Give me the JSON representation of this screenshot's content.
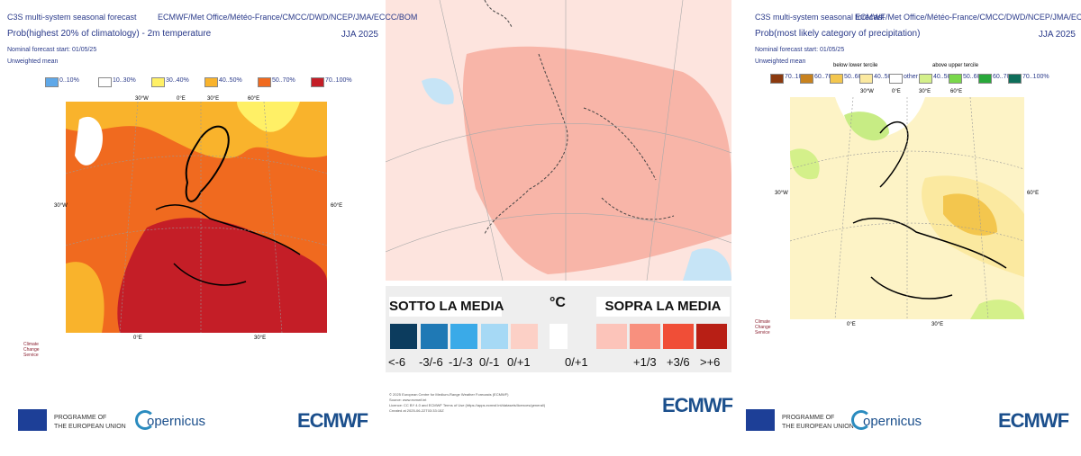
{
  "left": {
    "header": [
      "C3S multi-system seasonal forecast",
      "Prob(highest 20% of climatology) - 2m temperature",
      "Nominal forecast start: 01/05/25",
      "Unweighted mean"
    ],
    "providers": "ECMWF/Met Office/Météo-France/CMCC/DWD/NCEP/JMA/ECCC/BOM",
    "period": "JJA 2025",
    "legend": [
      {
        "label": "0..10%",
        "color": "#5fa8e8"
      },
      {
        "label": "10..30%",
        "color": "#ffffff"
      },
      {
        "label": "30..40%",
        "color": "#fff066"
      },
      {
        "label": "40..50%",
        "color": "#f9b32c"
      },
      {
        "label": "50..70%",
        "color": "#f06a1f"
      },
      {
        "label": "70..100%",
        "color": "#c41e27"
      }
    ],
    "map_labels": {
      "top": [
        "30°W",
        "0°E",
        "30°E",
        "60°E"
      ],
      "left": "30°W",
      "right": "60°E",
      "bottom": [
        "0°E",
        "30°E"
      ]
    },
    "service": "Climate Change Service",
    "footer": {
      "eu": [
        "PROGRAMME OF",
        "THE EUROPEAN UNION"
      ],
      "copernicus": "opernicus",
      "ecmwf": "ECMWF"
    }
  },
  "middle": {
    "below": {
      "title": "SOTTO LA MEDIA",
      "items": [
        {
          "label": "<-6",
          "color": "#0c3c5e"
        },
        {
          "label": "-3/-6",
          "color": "#1f79b5"
        },
        {
          "label": "-1/-3",
          "color": "#3aaae8"
        },
        {
          "label": "0/-1",
          "color": "#a6d9f5"
        },
        {
          "label": "0/+1",
          "color": "#fcd0c6"
        }
      ]
    },
    "unit": "°C",
    "above": {
      "title": "SOPRA LA MEDIA",
      "items": [
        {
          "label": "0/+1",
          "color": "#fcc4ba"
        },
        {
          "label": "+1/3",
          "color": "#f8907e"
        },
        {
          "label": "+3/6",
          "color": "#f04e37"
        },
        {
          "label": ">+6",
          "color": "#6c0e06"
        }
      ]
    },
    "credits": [
      "© 2025 European Centre for Medium-Range Weather Forecasts (ECMWF)",
      "Source: www.ecmwf.int",
      "Licence: CC BY 4.0 and ECMWF Terms of Use (https://apps.ecmwf.int/datasets/licences/general/)",
      "Created at 2025-06-22T03:33:15Z"
    ],
    "ecmwf": "ECMWF"
  },
  "right": {
    "header": [
      "C3S multi-system seasonal forecast",
      "Prob(most likely category of precipitation)",
      "Nominal forecast start: 01/05/25",
      "Unweighted mean"
    ],
    "providers": "ECMWF/Met Office/Météo-France/CMCC/DWD/NCEP/JMA/ECCC/BOM",
    "period": "JJA 2025",
    "terciles": [
      "below lower tercile",
      "above upper tercile"
    ],
    "legend": [
      {
        "label": "70..100%",
        "color": "#8b3a0f"
      },
      {
        "label": "60..70%",
        "color": "#c8821e"
      },
      {
        "label": "50..60%",
        "color": "#f3c64e"
      },
      {
        "label": "40..50%",
        "color": "#fbe9a0"
      },
      {
        "label": "other",
        "color": "#ffffff"
      },
      {
        "label": "40..50%",
        "color": "#d4f08a"
      },
      {
        "label": "50..60%",
        "color": "#79d84a"
      },
      {
        "label": "60..70%",
        "color": "#28a83a"
      },
      {
        "label": "70..100%",
        "color": "#0e6e5a"
      }
    ],
    "map_labels": {
      "top": [
        "30°W",
        "0°E",
        "30°E",
        "60°E"
      ],
      "left": "30°W",
      "right": "60°E",
      "bottom": [
        "0°E",
        "30°E"
      ]
    },
    "service": "Climate Change Service",
    "footer": {
      "eu": [
        "PROGRAMME OF",
        "THE EUROPEAN UNION"
      ],
      "copernicus": "opernicus",
      "ecmwf": "ECMWF"
    }
  }
}
